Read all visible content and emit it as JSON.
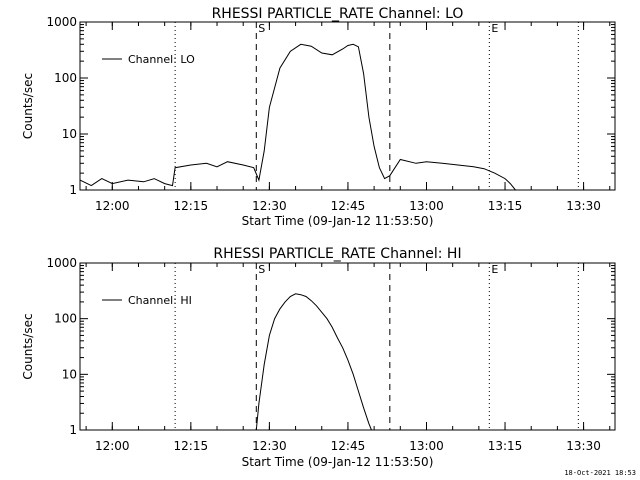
{
  "chart_data": [
    {
      "type": "line",
      "title": "RHESSI PARTICLE_RATE Channel: LO",
      "xlabel": "Start Time (09-Jan-12 11:53:50)",
      "ylabel": "Counts/sec",
      "y_scale": "log",
      "xlim": [
        "11:53:50",
        "13:36:00"
      ],
      "ylim": [
        1,
        1000
      ],
      "x_tick_labels": [
        "12:00",
        "12:15",
        "12:30",
        "12:45",
        "13:00",
        "13:15",
        "13:30"
      ],
      "y_tick_labels": [
        "1",
        "10",
        "100",
        "1000"
      ],
      "legend": {
        "placement": "top-left",
        "entries": [
          "Channel: LO"
        ]
      },
      "series": [
        {
          "name": "Channel: LO",
          "x": [
            "11:53:50",
            "11:56:00",
            "11:58:00",
            "12:00:00",
            "12:03:00",
            "12:06:00",
            "12:08:00",
            "12:10:00",
            "12:11:30",
            "12:12:00",
            "12:15:00",
            "12:18:00",
            "12:20:00",
            "12:22:00",
            "12:25:00",
            "12:27:00",
            "12:28:00",
            "12:29:00",
            "12:30:00",
            "12:32:00",
            "12:34:00",
            "12:36:00",
            "12:38:00",
            "12:40:00",
            "12:42:00",
            "12:44:00",
            "12:45:00",
            "12:46:00",
            "12:47:00",
            "12:48:00",
            "12:49:00",
            "12:50:00",
            "12:51:00",
            "12:52:00",
            "12:53:00",
            "12:55:00",
            "12:58:00",
            "13:00:00",
            "13:03:00",
            "13:06:00",
            "13:09:00",
            "13:11:00",
            "13:13:00",
            "13:15:00",
            "13:16:00",
            "13:17:00"
          ],
          "values": [
            1.5,
            1.2,
            1.6,
            1.3,
            1.5,
            1.4,
            1.6,
            1.3,
            1.2,
            2.5,
            2.8,
            3.0,
            2.6,
            3.2,
            2.8,
            2.5,
            1.5,
            5,
            30,
            150,
            300,
            400,
            370,
            280,
            260,
            330,
            380,
            400,
            360,
            120,
            20,
            6,
            2.5,
            1.6,
            1.8,
            3.5,
            3.0,
            3.2,
            3.0,
            2.8,
            2.6,
            2.4,
            2.0,
            1.6,
            1.3,
            1.0
          ]
        }
      ],
      "vlines": [
        {
          "x": "12:12:00",
          "style": "dotted"
        },
        {
          "x": "12:27:30",
          "style": "dashed",
          "label": "S"
        },
        {
          "x": "12:53:00",
          "style": "dashed"
        },
        {
          "x": "13:12:00",
          "style": "dotted",
          "label": "E"
        },
        {
          "x": "13:29:00",
          "style": "dotted"
        }
      ]
    },
    {
      "type": "line",
      "title": "RHESSI PARTICLE_RATE Channel: HI",
      "xlabel": "Start Time (09-Jan-12 11:53:50)",
      "ylabel": "Counts/sec",
      "y_scale": "log",
      "xlim": [
        "11:53:50",
        "13:36:00"
      ],
      "ylim": [
        1,
        1000
      ],
      "x_tick_labels": [
        "12:00",
        "12:15",
        "12:30",
        "12:45",
        "13:00",
        "13:15",
        "13:30"
      ],
      "y_tick_labels": [
        "1",
        "10",
        "100",
        "1000"
      ],
      "legend": {
        "placement": "top-left",
        "entries": [
          "Channel: HI"
        ]
      },
      "series": [
        {
          "name": "Channel: HI",
          "x": [
            "12:27:30",
            "12:28:00",
            "12:29:00",
            "12:30:00",
            "12:31:00",
            "12:32:00",
            "12:33:00",
            "12:34:00",
            "12:35:00",
            "12:36:00",
            "12:37:00",
            "12:38:00",
            "12:39:00",
            "12:40:00",
            "12:41:00",
            "12:42:00",
            "12:43:00",
            "12:44:00",
            "12:45:00",
            "12:46:00",
            "12:47:00",
            "12:48:00",
            "12:49:00",
            "12:49:30"
          ],
          "values": [
            1.0,
            3,
            15,
            50,
            100,
            150,
            200,
            250,
            280,
            270,
            250,
            210,
            170,
            130,
            100,
            70,
            45,
            30,
            18,
            10,
            5,
            2.5,
            1.3,
            1.0
          ]
        }
      ],
      "vlines": [
        {
          "x": "12:12:00",
          "style": "dotted"
        },
        {
          "x": "12:27:30",
          "style": "dashed",
          "label": "S"
        },
        {
          "x": "12:53:00",
          "style": "dashed"
        },
        {
          "x": "13:12:00",
          "style": "dotted",
          "label": "E"
        },
        {
          "x": "13:29:00",
          "style": "dotted"
        }
      ]
    }
  ],
  "footer": "18-Oct-2021 18:53"
}
